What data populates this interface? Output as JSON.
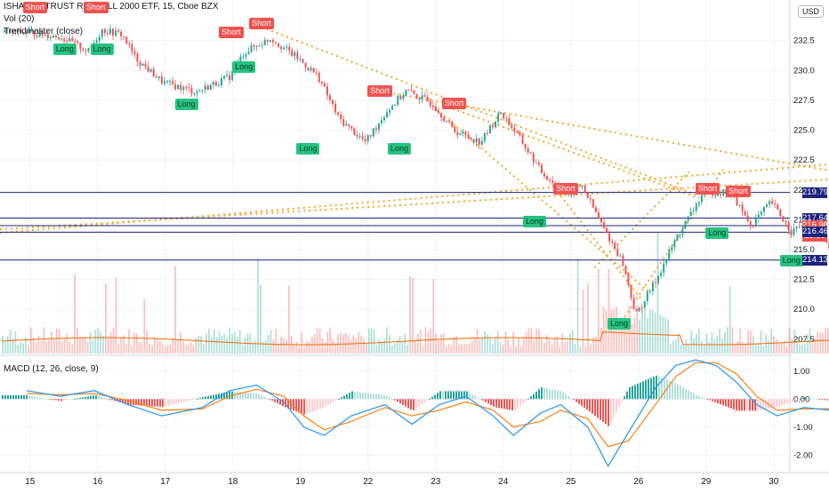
{
  "header": {
    "symbol_line": "ISHARES TRUST RUSSELL 2000 ETF, 15, Cboe BZX",
    "vol_label": "Vol (20)",
    "indicator_label": "Trendmaster (close)",
    "macd_label": "MACD (12, 26, close, 9)",
    "currency": "USD"
  },
  "colors": {
    "up": "#26a69a",
    "down": "#ef5350",
    "trend": "#f5a623",
    "hline": "#1a237e",
    "macd": "#2196f3",
    "signal": "#ff7f0e",
    "price_badge": "#ef5350"
  },
  "chart_data": [
    {
      "type": "candlestick",
      "title": "ISHARES TRUST RUSSELL 2000 ETF, 15, Cboe BZX",
      "x_ticks": [
        "15",
        "16",
        "17",
        "18",
        "19",
        "22",
        "23",
        "24",
        "25",
        "26",
        "29",
        "30"
      ],
      "y_ticks": [
        207.5,
        210.0,
        212.5,
        215.0,
        217.5,
        220.0,
        222.5,
        225.0,
        227.5,
        230.0,
        232.5
      ],
      "ylim": [
        206.3,
        235.6
      ],
      "close_path": [
        [
          0,
          233.2
        ],
        [
          0.5,
          232.8
        ],
        [
          0.9,
          231.6
        ],
        [
          1.1,
          233.4
        ],
        [
          1.4,
          233.0
        ],
        [
          1.6,
          231.0
        ],
        [
          2.0,
          229.0
        ],
        [
          2.5,
          228.2
        ],
        [
          3.0,
          229.5
        ],
        [
          3.2,
          231.5
        ],
        [
          3.6,
          232.7
        ],
        [
          4.0,
          231.0
        ],
        [
          4.3,
          229.5
        ],
        [
          4.6,
          226.0
        ],
        [
          5.0,
          224.0
        ],
        [
          5.3,
          226.5
        ],
        [
          5.6,
          228.3
        ],
        [
          6.0,
          227.2
        ],
        [
          6.3,
          225.0
        ],
        [
          6.7,
          224.0
        ],
        [
          7.0,
          226.5
        ],
        [
          7.2,
          225.0
        ],
        [
          7.6,
          221.5
        ],
        [
          8.0,
          219.5
        ],
        [
          8.2,
          220.4
        ],
        [
          8.5,
          217.0
        ],
        [
          8.8,
          214.0
        ],
        [
          9.0,
          209.5
        ],
        [
          9.3,
          212.5
        ],
        [
          9.6,
          216.0
        ],
        [
          10.0,
          219.8
        ],
        [
          10.4,
          219.8
        ],
        [
          10.7,
          217.0
        ],
        [
          11.0,
          219.0
        ],
        [
          11.3,
          216.5
        ],
        [
          11.6,
          217.5
        ],
        [
          12.0,
          214.0
        ],
        [
          12.2,
          216.98
        ]
      ],
      "horizontal_levels": [
        219.79,
        217.64,
        217.01,
        216.46,
        214.13
      ],
      "price_labels": [
        "219.79",
        "217.64",
        "217.01",
        "216.98",
        "13:50",
        "216.46",
        "214.13"
      ],
      "signals": [
        {
          "text": "Short",
          "x": 0.1,
          "price": 235.3
        },
        {
          "text": "Short",
          "x": 1.0,
          "price": 235.3
        },
        {
          "text": "Long",
          "x": 0.55,
          "price": 231.8
        },
        {
          "text": "Long",
          "x": 1.1,
          "price": 231.8
        },
        {
          "text": "Short",
          "x": 3.0,
          "price": 233.2
        },
        {
          "text": "Long",
          "x": 3.2,
          "price": 230.3
        },
        {
          "text": "Short",
          "x": 3.45,
          "price": 234.0
        },
        {
          "text": "Long",
          "x": 2.35,
          "price": 227.2
        },
        {
          "text": "Long",
          "x": 4.15,
          "price": 223.5
        },
        {
          "text": "Short",
          "x": 5.2,
          "price": 228.3
        },
        {
          "text": "Long",
          "x": 5.5,
          "price": 223.5
        },
        {
          "text": "Short",
          "x": 6.3,
          "price": 227.3
        },
        {
          "text": "Long",
          "x": 7.5,
          "price": 217.4
        },
        {
          "text": "Short",
          "x": 7.95,
          "price": 220.1
        },
        {
          "text": "Long",
          "x": 8.75,
          "price": 208.8
        },
        {
          "text": "Short",
          "x": 10.05,
          "price": 220.1
        },
        {
          "text": "Short",
          "x": 10.5,
          "price": 219.9
        },
        {
          "text": "Long",
          "x": 10.2,
          "price": 216.4
        },
        {
          "text": "Long",
          "x": 11.3,
          "price": 214.1
        }
      ],
      "grid": true
    },
    {
      "type": "bar",
      "title": "Vol (20)",
      "description": "volume histogram with 20-period moving average"
    },
    {
      "type": "line",
      "title": "MACD (12, 26, close, 9)",
      "y_ticks": [
        1.0,
        0.0,
        -1.0,
        -2.0
      ],
      "y_tick_labels": [
        "1.00",
        "0.00",
        "-1.00",
        "-2.00"
      ],
      "ylim": [
        -2.5,
        1.5
      ],
      "macd_path": [
        [
          0,
          0.3
        ],
        [
          0.5,
          0.1
        ],
        [
          1.0,
          0.3
        ],
        [
          1.5,
          -0.2
        ],
        [
          2.0,
          -0.6
        ],
        [
          2.6,
          -0.3
        ],
        [
          3.0,
          0.3
        ],
        [
          3.4,
          0.5
        ],
        [
          3.8,
          -0.1
        ],
        [
          4.1,
          -1.0
        ],
        [
          4.4,
          -1.3
        ],
        [
          4.8,
          -0.6
        ],
        [
          5.3,
          -0.2
        ],
        [
          5.7,
          -0.9
        ],
        [
          6.1,
          -0.2
        ],
        [
          6.5,
          0.1
        ],
        [
          6.9,
          -0.6
        ],
        [
          7.2,
          -1.3
        ],
        [
          7.6,
          -0.5
        ],
        [
          7.9,
          -0.2
        ],
        [
          8.3,
          -1.0
        ],
        [
          8.6,
          -2.4
        ],
        [
          8.9,
          -1.2
        ],
        [
          9.3,
          0.4
        ],
        [
          9.6,
          1.2
        ],
        [
          9.9,
          1.4
        ],
        [
          10.2,
          1.2
        ],
        [
          10.5,
          0.6
        ],
        [
          10.8,
          -0.2
        ],
        [
          11.1,
          -0.6
        ],
        [
          11.5,
          -0.3
        ],
        [
          11.9,
          -0.4
        ],
        [
          12.2,
          0.2
        ]
      ],
      "signal_path": [
        [
          0,
          0.2
        ],
        [
          0.5,
          0.15
        ],
        [
          1.0,
          0.2
        ],
        [
          1.5,
          -0.05
        ],
        [
          2.0,
          -0.4
        ],
        [
          2.6,
          -0.35
        ],
        [
          3.0,
          0.1
        ],
        [
          3.4,
          0.35
        ],
        [
          3.8,
          0.1
        ],
        [
          4.1,
          -0.6
        ],
        [
          4.4,
          -1.1
        ],
        [
          4.8,
          -0.8
        ],
        [
          5.3,
          -0.3
        ],
        [
          5.7,
          -0.6
        ],
        [
          6.1,
          -0.4
        ],
        [
          6.5,
          -0.1
        ],
        [
          6.9,
          -0.4
        ],
        [
          7.2,
          -1.0
        ],
        [
          7.6,
          -0.8
        ],
        [
          7.9,
          -0.4
        ],
        [
          8.3,
          -0.7
        ],
        [
          8.6,
          -1.7
        ],
        [
          8.9,
          -1.5
        ],
        [
          9.3,
          -0.2
        ],
        [
          9.6,
          0.8
        ],
        [
          9.9,
          1.3
        ],
        [
          10.2,
          1.3
        ],
        [
          10.5,
          0.9
        ],
        [
          10.8,
          0.1
        ],
        [
          11.1,
          -0.4
        ],
        [
          11.5,
          -0.35
        ],
        [
          11.9,
          -0.35
        ],
        [
          12.2,
          0.0
        ]
      ]
    }
  ]
}
